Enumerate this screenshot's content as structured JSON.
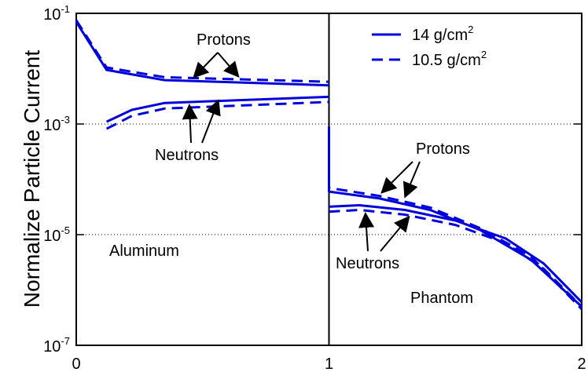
{
  "chart_data": {
    "type": "line",
    "title": "",
    "xlabel": "",
    "ylabel": "Normalize Particle Current",
    "x_range": [
      0,
      2
    ],
    "y_range": [
      1e-07,
      0.1
    ],
    "y_scale": "log",
    "x_ticks": [
      {
        "value": 0,
        "label": "0"
      },
      {
        "value": 1,
        "label": "1"
      },
      {
        "value": 2,
        "label": "2"
      }
    ],
    "y_ticks": [
      {
        "value": 0.1,
        "mantissa": "10",
        "exponent": "-1"
      },
      {
        "value": 0.001,
        "mantissa": "10",
        "exponent": "-3"
      },
      {
        "value": 1e-05,
        "mantissa": "10",
        "exponent": "-5"
      },
      {
        "value": 1e-07,
        "mantissa": "10",
        "exponent": "-7"
      }
    ],
    "gridlines_y": [
      0.001,
      1e-05
    ],
    "legend": {
      "placement": "top-right",
      "entries": [
        {
          "label": "14 g/cm",
          "superscript": "2",
          "style": "solid"
        },
        {
          "label": "10.5 g/cm",
          "superscript": "2",
          "style": "dashed"
        }
      ]
    },
    "annotations": [
      {
        "text": "Protons",
        "region": "left"
      },
      {
        "text": "Neutrons",
        "region": "left"
      },
      {
        "text": "Aluminum",
        "region": "left"
      },
      {
        "text": "Protons",
        "region": "right"
      },
      {
        "text": "Neutrons",
        "region": "right"
      },
      {
        "text": "Phantom",
        "region": "right"
      }
    ],
    "boundary_x": 1,
    "series": [
      {
        "label": "14 g/cm2 Protons",
        "style": "solid",
        "color": "#0000dd",
        "segments": [
          [
            [
              0,
              0.07
            ],
            [
              0.12,
              0.0095
            ],
            [
              0.35,
              0.0062
            ],
            [
              1,
              0.005
            ]
          ],
          [
            [
              1,
              0.0008
            ],
            [
              1,
              6e-05
            ],
            [
              1.2,
              4.5e-05
            ],
            [
              1.4,
              2.8e-05
            ],
            [
              1.6,
              1.2e-05
            ],
            [
              1.8,
              3.5e-06
            ],
            [
              2,
              5e-07
            ]
          ]
        ]
      },
      {
        "label": "10.5 g/cm2 Protons",
        "style": "dashed",
        "color": "#0000dd",
        "segments": [
          [
            [
              0,
              0.075
            ],
            [
              0.12,
              0.0105
            ],
            [
              0.35,
              0.007
            ],
            [
              1,
              0.0058
            ]
          ],
          [
            [
              1,
              0.0009
            ],
            [
              1,
              7e-05
            ],
            [
              1.2,
              5e-05
            ],
            [
              1.4,
              3.1e-05
            ],
            [
              1.6,
              1.3e-05
            ],
            [
              1.8,
              4e-06
            ],
            [
              2,
              4.5e-07
            ]
          ]
        ]
      },
      {
        "label": "14 g/cm2 Neutrons",
        "style": "solid",
        "color": "#0000dd",
        "segments": [
          [
            [
              0.12,
              0.0011
            ],
            [
              0.22,
              0.0018
            ],
            [
              0.35,
              0.0024
            ],
            [
              1,
              0.0031
            ]
          ],
          [
            [
              1,
              3.2e-05
            ],
            [
              1.12,
              3.4e-05
            ],
            [
              1.3,
              2.8e-05
            ],
            [
              1.5,
              1.8e-05
            ],
            [
              1.7,
              8.5e-06
            ],
            [
              1.85,
              3e-06
            ],
            [
              2,
              6e-07
            ]
          ]
        ]
      },
      {
        "label": "10.5 g/cm2 Neutrons",
        "style": "dashed",
        "color": "#0000dd",
        "segments": [
          [
            [
              0.12,
              0.00082
            ],
            [
              0.22,
              0.0014
            ],
            [
              0.35,
              0.0019
            ],
            [
              1,
              0.0025
            ]
          ],
          [
            [
              1,
              2.6e-05
            ],
            [
              1.12,
              2.8e-05
            ],
            [
              1.3,
              2.3e-05
            ],
            [
              1.5,
              1.5e-05
            ],
            [
              1.7,
              7e-06
            ],
            [
              1.85,
              2.4e-06
            ],
            [
              2,
              5e-07
            ]
          ]
        ]
      }
    ]
  }
}
